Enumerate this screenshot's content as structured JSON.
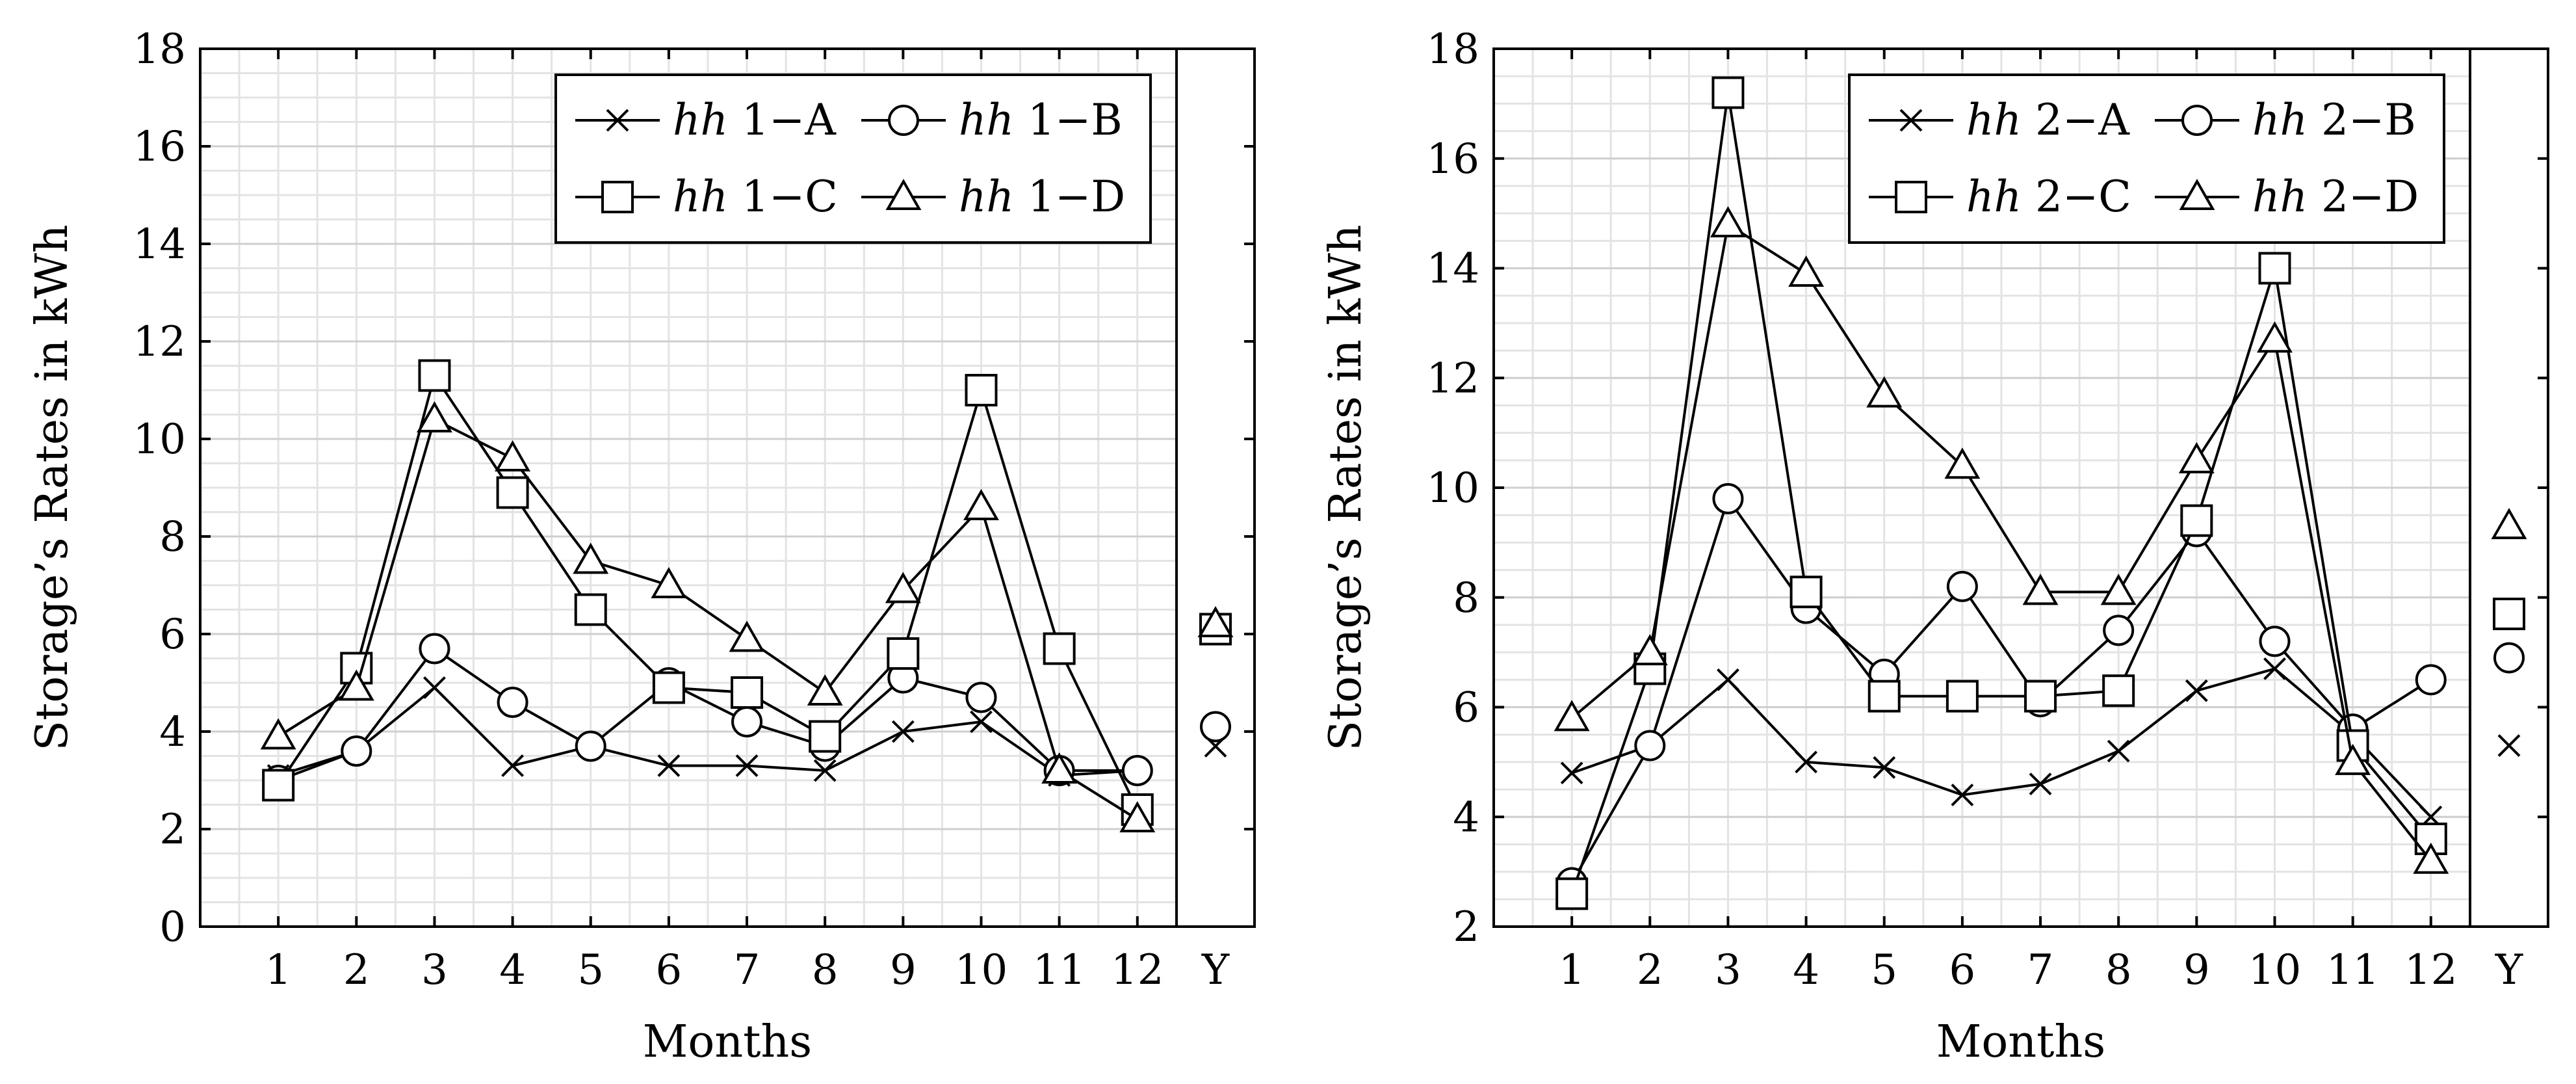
{
  "chart_data": [
    {
      "type": "line",
      "xlabel": "Months",
      "ylabel": "Storage’s Rates in kWh",
      "ylim": [
        0,
        18
      ],
      "yticks": [
        0,
        2,
        4,
        6,
        8,
        10,
        12,
        14,
        16,
        18
      ],
      "categories": [
        "1",
        "2",
        "3",
        "4",
        "5",
        "6",
        "7",
        "8",
        "9",
        "10",
        "11",
        "12"
      ],
      "summary_category": "Y",
      "grid": true,
      "legend_position": "top-right",
      "legend_columns": 2,
      "series": [
        {
          "name": "hh 1−A",
          "marker": "x",
          "values": [
            3.1,
            3.6,
            4.9,
            3.3,
            3.7,
            3.3,
            3.3,
            3.2,
            4.0,
            4.2,
            3.1,
            3.2
          ],
          "summary": 3.7
        },
        {
          "name": "hh 1−B",
          "marker": "circle",
          "values": [
            3.0,
            3.6,
            5.7,
            4.6,
            3.7,
            5.0,
            4.2,
            3.7,
            5.1,
            4.7,
            3.2,
            3.2
          ],
          "summary": 4.1
        },
        {
          "name": "hh 1−C",
          "marker": "square",
          "values": [
            2.9,
            5.3,
            11.3,
            8.9,
            6.5,
            4.9,
            4.8,
            3.9,
            5.6,
            11.0,
            5.7,
            2.4
          ],
          "summary": 6.1
        },
        {
          "name": "hh 1−D",
          "marker": "triangle",
          "values": [
            3.9,
            4.9,
            10.4,
            9.6,
            7.5,
            7.0,
            5.9,
            4.8,
            6.9,
            8.6,
            3.2,
            2.2
          ],
          "summary": 6.2
        }
      ]
    },
    {
      "type": "line",
      "xlabel": "Months",
      "ylabel": "Storage’s Rates in kWh",
      "ylim": [
        2,
        18
      ],
      "yticks": [
        2,
        4,
        6,
        8,
        10,
        12,
        14,
        16,
        18
      ],
      "categories": [
        "1",
        "2",
        "3",
        "4",
        "5",
        "6",
        "7",
        "8",
        "9",
        "10",
        "11",
        "12"
      ],
      "summary_category": "Y",
      "grid": true,
      "legend_position": "top-right",
      "legend_columns": 2,
      "series": [
        {
          "name": "hh 2−A",
          "marker": "x",
          "values": [
            4.8,
            5.3,
            6.5,
            5.0,
            4.9,
            4.4,
            4.6,
            5.2,
            6.3,
            6.7,
            5.5,
            4.0
          ],
          "summary": 5.3
        },
        {
          "name": "hh 2−B",
          "marker": "circle",
          "values": [
            2.8,
            5.3,
            9.8,
            7.8,
            6.6,
            8.2,
            6.1,
            7.4,
            9.2,
            7.2,
            5.6,
            6.5
          ],
          "summary": 6.9
        },
        {
          "name": "hh 2−C",
          "marker": "square",
          "values": [
            2.6,
            6.7,
            17.2,
            8.1,
            6.2,
            6.2,
            6.2,
            6.3,
            9.4,
            14.0,
            5.3,
            3.6
          ],
          "summary": 7.7
        },
        {
          "name": "hh 2−D",
          "marker": "triangle",
          "values": [
            5.8,
            7.0,
            14.8,
            13.9,
            11.7,
            10.4,
            8.1,
            8.1,
            10.5,
            12.7,
            5.0,
            3.2
          ],
          "summary": 9.3
        }
      ]
    }
  ]
}
